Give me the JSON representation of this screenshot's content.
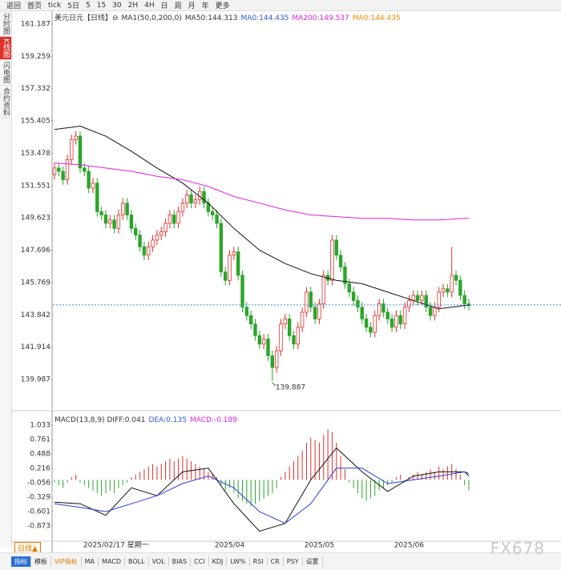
{
  "ui": {
    "toolbar": [
      "返回",
      "首页",
      "tick",
      "5日",
      "5",
      "15",
      "30",
      "2H",
      "4H",
      "日",
      "周",
      "月",
      "年",
      "更多"
    ],
    "sidebar": [
      "分时图",
      "K线图",
      "闪电图",
      "合约资料"
    ],
    "period_button": "日线▲",
    "bottom_tabs": [
      "指标",
      "模板",
      "VIP指标",
      "MA",
      "MACD",
      "BOLL",
      "VOL",
      "BIAS",
      "CCI",
      "KDJ",
      "LW%",
      "RSI",
      "CR",
      "PSY",
      "设置"
    ],
    "watermark": "FX678"
  },
  "chart_data": [
    {
      "type": "candlestick",
      "header": [
        "美元日元【日线】⊖",
        "MA1(50,0,200,0)",
        "MA50:144.313",
        "MA0:144.435",
        "MA200:149.537",
        "MA0:144.435"
      ],
      "header_colors": [
        "#333333",
        "#333333",
        "#333333",
        "#2a5bd7",
        "#e020e0",
        "#f08a00"
      ],
      "cursor_label": "2025/02/17 星期一",
      "categories": [
        null,
        null,
        null,
        null,
        null,
        null,
        null,
        null,
        null,
        null,
        null,
        null,
        null,
        null,
        null,
        null,
        null,
        null,
        null,
        null,
        null,
        null,
        null,
        null,
        null,
        null,
        null,
        null,
        null,
        null,
        null,
        null,
        null,
        null,
        null,
        null,
        null,
        null,
        null,
        null,
        null,
        "2025/04",
        null,
        null,
        null,
        null,
        null,
        null,
        null,
        null,
        null,
        null,
        null,
        null,
        null,
        null,
        null,
        null,
        null,
        null,
        null,
        null,
        "2025/05",
        null,
        null,
        null,
        null,
        null,
        null,
        null,
        null,
        null,
        null,
        null,
        null,
        null,
        null,
        null,
        null,
        null,
        null,
        null,
        null,
        "2025/06",
        null,
        null,
        null,
        null,
        null,
        null,
        null,
        null,
        null,
        null,
        null,
        null,
        null,
        null
      ],
      "open": [
        152.2,
        152.6,
        152.4,
        151.9,
        153.1,
        154.3,
        154.5,
        152.6,
        152.4,
        151.4,
        151.7,
        150.0,
        149.8,
        149.3,
        149.5,
        149.0,
        149.8,
        150.5,
        149.8,
        149.0,
        148.6,
        147.9,
        147.4,
        147.9,
        148.3,
        148.6,
        148.8,
        149.3,
        149.8,
        149.3,
        150.0,
        150.5,
        151.0,
        150.5,
        150.7,
        151.2,
        150.5,
        150.0,
        149.8,
        149.3,
        146.4,
        145.9,
        147.4,
        147.6,
        146.2,
        144.3,
        143.8,
        143.3,
        142.6,
        142.1,
        142.4,
        141.4,
        140.7,
        141.7,
        143.3,
        143.6,
        142.6,
        142.1,
        143.1,
        144.0,
        145.2,
        144.3,
        143.6,
        144.5,
        146.2,
        145.9,
        148.3,
        147.4,
        146.7,
        145.7,
        145.2,
        144.7,
        144.3,
        143.6,
        143.1,
        142.8,
        143.8,
        144.5,
        144.0,
        143.6,
        143.1,
        143.8,
        143.3,
        144.3,
        144.7,
        145.0,
        144.7,
        145.0,
        144.3,
        143.8,
        144.3,
        145.2,
        145.4,
        145.2,
        146.2,
        145.9,
        145.0,
        144.5
      ],
      "high": [
        152.9,
        152.9,
        152.7,
        153.4,
        154.6,
        154.8,
        154.8,
        152.9,
        152.7,
        152.0,
        152.0,
        150.3,
        150.1,
        149.8,
        149.8,
        150.1,
        150.8,
        150.8,
        150.1,
        149.3,
        148.9,
        148.2,
        148.2,
        148.6,
        148.9,
        149.1,
        149.6,
        150.1,
        150.1,
        150.3,
        150.8,
        151.3,
        151.3,
        151.0,
        151.5,
        151.5,
        150.8,
        150.3,
        150.1,
        149.6,
        146.7,
        147.7,
        147.9,
        147.9,
        146.5,
        144.6,
        144.1,
        143.6,
        142.9,
        142.7,
        142.7,
        141.7,
        142.0,
        143.6,
        143.9,
        143.9,
        142.9,
        143.4,
        144.3,
        145.5,
        145.5,
        144.6,
        144.8,
        146.5,
        146.5,
        148.6,
        148.6,
        147.7,
        147.0,
        146.0,
        145.5,
        145.0,
        144.6,
        143.9,
        143.4,
        144.1,
        144.8,
        144.8,
        144.3,
        143.9,
        144.1,
        144.1,
        144.6,
        145.0,
        145.3,
        145.3,
        145.3,
        145.3,
        144.6,
        144.6,
        145.5,
        145.7,
        145.7,
        147.9,
        146.5,
        146.2,
        145.3,
        144.8
      ],
      "low": [
        151.9,
        152.1,
        151.6,
        151.6,
        152.8,
        154.0,
        152.3,
        152.1,
        151.1,
        151.1,
        149.7,
        149.5,
        149.0,
        149.0,
        148.7,
        148.7,
        149.5,
        149.5,
        148.7,
        148.3,
        147.6,
        147.1,
        147.1,
        147.6,
        148.0,
        148.3,
        148.5,
        149.0,
        149.0,
        149.0,
        149.7,
        150.2,
        150.2,
        150.2,
        150.4,
        150.2,
        149.7,
        149.5,
        149.0,
        146.1,
        145.6,
        145.6,
        147.1,
        145.9,
        144.0,
        143.5,
        143.0,
        142.3,
        141.8,
        141.8,
        141.1,
        139.887,
        140.4,
        141.4,
        143.0,
        142.3,
        141.8,
        141.8,
        142.8,
        143.7,
        144.0,
        143.3,
        143.3,
        144.2,
        145.6,
        145.6,
        147.1,
        146.4,
        145.4,
        144.9,
        144.4,
        144.0,
        143.3,
        142.8,
        142.5,
        142.5,
        143.5,
        143.7,
        143.3,
        142.8,
        142.8,
        143.0,
        143.0,
        144.0,
        144.4,
        144.4,
        144.4,
        144.0,
        143.5,
        143.5,
        144.0,
        144.9,
        144.9,
        144.9,
        145.6,
        144.7,
        144.2,
        144.1
      ],
      "close": [
        152.6,
        152.4,
        151.9,
        153.1,
        154.3,
        154.5,
        152.6,
        152.4,
        151.4,
        151.7,
        150.0,
        149.8,
        149.3,
        149.5,
        149.0,
        149.8,
        150.5,
        149.8,
        149.0,
        148.6,
        147.9,
        147.4,
        147.9,
        148.3,
        148.6,
        148.8,
        149.3,
        149.8,
        149.3,
        150.0,
        150.5,
        151.0,
        150.5,
        150.7,
        151.2,
        150.5,
        150.0,
        149.8,
        149.3,
        146.4,
        145.9,
        147.4,
        147.6,
        146.2,
        144.3,
        143.8,
        143.3,
        142.6,
        142.1,
        142.4,
        141.4,
        140.7,
        141.7,
        143.3,
        143.6,
        142.6,
        142.1,
        143.1,
        144.0,
        145.2,
        144.3,
        143.6,
        144.5,
        146.2,
        145.9,
        148.3,
        147.4,
        146.7,
        145.7,
        145.2,
        144.7,
        144.3,
        143.6,
        143.1,
        142.8,
        143.8,
        144.5,
        144.0,
        143.6,
        143.1,
        143.8,
        143.3,
        144.3,
        144.7,
        145.0,
        144.7,
        145.0,
        144.3,
        143.8,
        144.3,
        145.2,
        145.4,
        145.2,
        146.2,
        145.9,
        145.0,
        144.5,
        144.4
      ],
      "up_color": "#e0302a",
      "down_color": "#2aa52a",
      "low_label_index": 51,
      "last_price": 144.435,
      "lines": [
        {
          "color": "#111111",
          "x": [
            0,
            6,
            12,
            18,
            24,
            30,
            36,
            42,
            48,
            54,
            60,
            66,
            72,
            78,
            84,
            90,
            96,
            97
          ],
          "values": [
            154.9,
            155.1,
            154.5,
            153.6,
            152.6,
            151.7,
            150.5,
            149.0,
            147.7,
            146.9,
            146.3,
            145.9,
            145.7,
            145.2,
            144.7,
            144.2,
            144.4,
            144.4
          ]
        },
        {
          "color": "#e020e0",
          "x": [
            0,
            6,
            12,
            18,
            24,
            30,
            36,
            42,
            48,
            54,
            60,
            66,
            72,
            78,
            84,
            90,
            96,
            97
          ],
          "values": [
            152.9,
            152.8,
            152.6,
            152.4,
            152.1,
            151.9,
            151.5,
            150.9,
            150.5,
            150.1,
            149.8,
            149.7,
            149.6,
            149.6,
            149.5,
            149.5,
            149.6,
            149.6
          ]
        }
      ],
      "ylim": [
        138.27,
        161.76
      ],
      "yticks": [
        161.187,
        159.259,
        157.332,
        155.405,
        153.478,
        151.551,
        149.623,
        147.696,
        145.769,
        143.842,
        141.914,
        139.987
      ]
    },
    {
      "type": "macd",
      "header": [
        "MACD(13,8,9) DIFF:0.041",
        "DEA:0.135",
        "MACD:-0.189"
      ],
      "header_colors": [
        "#333333",
        "#2a5bd7",
        "#e020e0"
      ],
      "histogram": [
        -0.05,
        -0.1,
        -0.15,
        -0.05,
        0.05,
        0.1,
        -0.05,
        -0.1,
        -0.15,
        -0.2,
        -0.25,
        -0.3,
        -0.25,
        -0.2,
        -0.25,
        -0.15,
        -0.1,
        -0.05,
        0.05,
        0.1,
        0.15,
        0.2,
        0.25,
        0.3,
        0.25,
        0.3,
        0.35,
        0.4,
        0.35,
        0.4,
        0.45,
        0.4,
        0.35,
        0.3,
        0.25,
        0.2,
        0.15,
        0.1,
        0.05,
        -0.1,
        -0.2,
        -0.15,
        -0.25,
        -0.35,
        -0.4,
        -0.45,
        -0.5,
        -0.45,
        -0.4,
        -0.35,
        -0.3,
        -0.25,
        -0.15,
        0.05,
        0.15,
        0.25,
        0.35,
        0.45,
        0.55,
        0.7,
        0.8,
        0.75,
        0.7,
        0.85,
        0.95,
        0.9,
        0.7,
        0.45,
        0.2,
        -0.05,
        -0.15,
        -0.25,
        -0.35,
        -0.4,
        -0.35,
        -0.3,
        -0.2,
        -0.15,
        -0.1,
        -0.05,
        0.05,
        0.1,
        -0.05,
        0.05,
        0.1,
        0.15,
        0.1,
        0.15,
        0.2,
        0.15,
        0.25,
        0.2,
        0.25,
        0.3,
        0.2,
        0.1,
        -0.1,
        -0.2
      ],
      "up_color": "#e0302a",
      "down_color": "#2aa52a",
      "lines": [
        {
          "color": "#111111",
          "x": [
            0,
            6,
            12,
            18,
            24,
            30,
            36,
            42,
            48,
            54,
            60,
            66,
            72,
            78,
            84,
            90,
            96,
            97
          ],
          "values": [
            -0.42,
            -0.45,
            -0.67,
            -0.15,
            -0.3,
            0.15,
            0.22,
            -0.45,
            -0.97,
            -0.82,
            0.0,
            0.6,
            0.15,
            -0.22,
            0.07,
            0.15,
            0.15,
            0.07
          ]
        },
        {
          "color": "#2a3fd7",
          "x": [
            0,
            6,
            12,
            18,
            24,
            30,
            36,
            42,
            48,
            54,
            60,
            66,
            72,
            78,
            84,
            90,
            96,
            97
          ],
          "values": [
            -0.45,
            -0.52,
            -0.6,
            -0.45,
            -0.3,
            -0.07,
            0.07,
            -0.15,
            -0.6,
            -0.82,
            -0.45,
            0.22,
            0.22,
            -0.07,
            0.0,
            0.07,
            0.15,
            0.12
          ]
        }
      ],
      "ylim": [
        -1.142,
        1.168
      ],
      "yticks": [
        1.033,
        0.761,
        0.488,
        0.216,
        -0.056,
        -0.329,
        -0.601,
        -0.873
      ]
    }
  ]
}
